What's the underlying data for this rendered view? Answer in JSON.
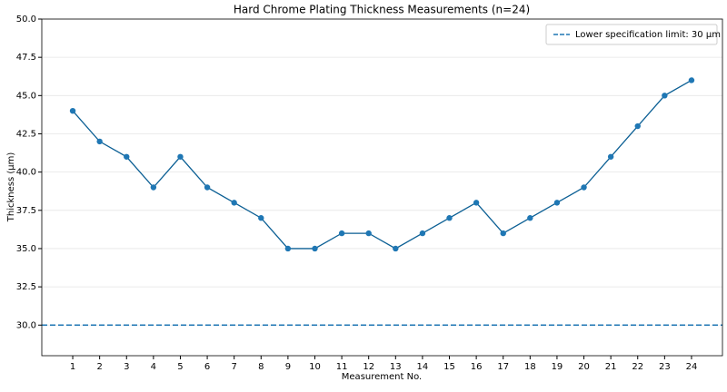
{
  "chart_data": {
    "type": "line",
    "title": "Hard Chrome Plating Thickness Measurements (n=24)",
    "x_label": "Measurement No.",
    "y_label": "Thickness (µm)",
    "x": [
      1,
      2,
      3,
      4,
      5,
      6,
      7,
      8,
      9,
      10,
      11,
      12,
      13,
      14,
      15,
      16,
      17,
      18,
      19,
      20,
      21,
      22,
      23,
      24
    ],
    "series": [
      {
        "name": "Thickness",
        "color": "#1f77b4",
        "line_color": "#0b5f94",
        "values": [
          44,
          42,
          41,
          39,
          41,
          39,
          38,
          37,
          35,
          35,
          36,
          36,
          35,
          36,
          37,
          38,
          36,
          37,
          38,
          39,
          41,
          43,
          45,
          46
        ]
      }
    ],
    "reference_line": {
      "value": 30,
      "label": "Lower specification limit: 30 µm",
      "color": "#1f77b4",
      "style": "dashed"
    },
    "xlim": [
      -0.15,
      25.15
    ],
    "xticks": [
      1,
      2,
      3,
      4,
      5,
      6,
      7,
      8,
      9,
      10,
      11,
      12,
      13,
      14,
      15,
      16,
      17,
      18,
      19,
      20,
      21,
      22,
      23,
      24
    ],
    "ylim": [
      28,
      50
    ],
    "yticks": [
      {
        "value": 30,
        "label": "30.0"
      },
      32.5,
      {
        "value": 35,
        "label": "35.0"
      },
      37.5,
      {
        "value": 40,
        "label": "40.0"
      },
      42.5,
      {
        "value": 45,
        "label": "45.0"
      },
      47.5,
      {
        "value": 50,
        "label": "50.0"
      }
    ],
    "grid": true,
    "legend": "upper right"
  }
}
